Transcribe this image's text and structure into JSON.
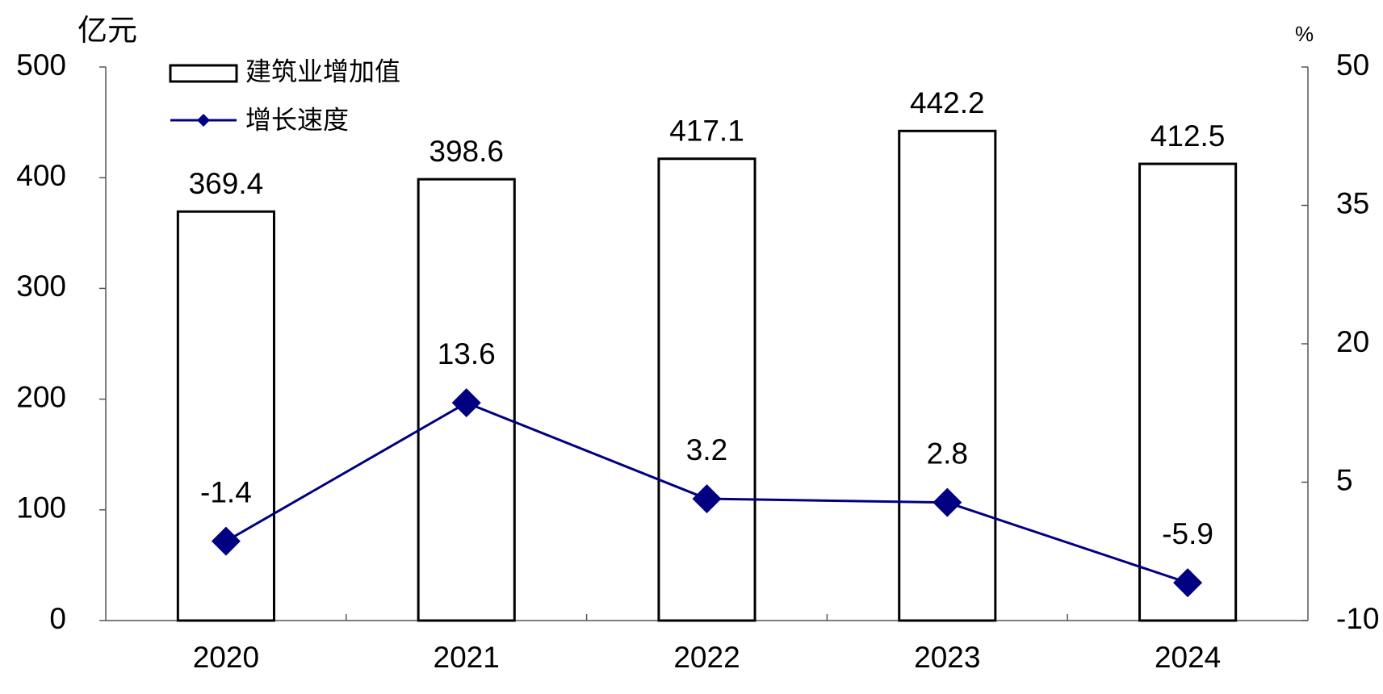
{
  "chart_data": {
    "type": "bar",
    "y_label": "亿元",
    "y2_label": "%",
    "categories": [
      "2020",
      "2021",
      "2022",
      "2023",
      "2024"
    ],
    "series": [
      {
        "name": "建筑业增加值",
        "type": "bar",
        "color": "#ffffff",
        "values": [
          369.4,
          398.6,
          417.1,
          442.2,
          412.5
        ]
      },
      {
        "name": "增长速度",
        "type": "line",
        "axis": "y2",
        "color": "#000080",
        "values": [
          -1.4,
          13.6,
          3.2,
          2.8,
          -5.9
        ]
      }
    ],
    "ylim": [
      0,
      500
    ],
    "yticks": [
      0,
      100,
      200,
      300,
      400,
      500
    ],
    "y2lim": [
      -10,
      50
    ],
    "y2ticks": [
      -10,
      5,
      20,
      35,
      50
    ]
  }
}
